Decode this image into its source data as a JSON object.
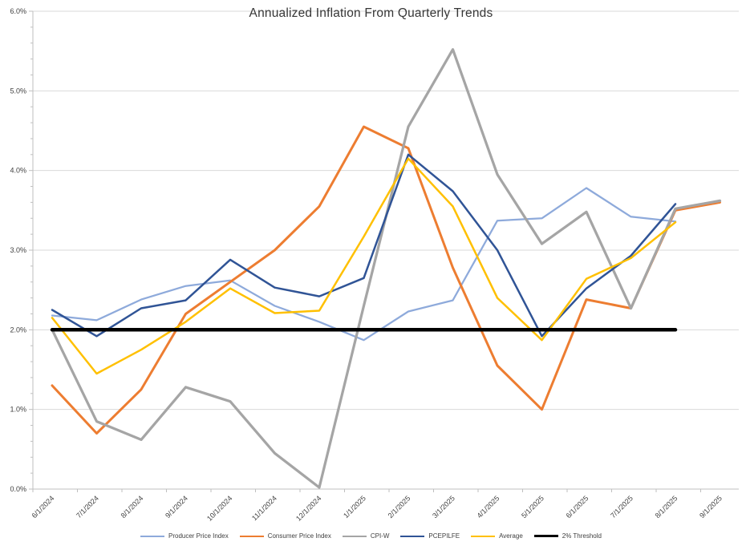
{
  "title": "Annualized Inflation From Quarterly Trends",
  "chart_data": {
    "type": "line",
    "title": "Annualized Inflation From Quarterly Trends",
    "xlabel": "",
    "ylabel": "",
    "ylim": [
      0,
      6
    ],
    "y_tick_labels": [
      "0.0%",
      "1.0%",
      "2.0%",
      "3.0%",
      "4.0%",
      "5.0%",
      "6.0%"
    ],
    "grid": "horizontal",
    "legend_position": "bottom",
    "categories": [
      "6/1/2024",
      "7/1/2024",
      "8/1/2024",
      "9/1/2024",
      "10/1/2024",
      "11/1/2024",
      "12/1/2024",
      "1/1/2025",
      "2/1/2025",
      "3/1/2025",
      "4/1/2025",
      "5/1/2025",
      "6/1/2025",
      "7/1/2025",
      "8/1/2025",
      "9/1/2025"
    ],
    "series": [
      {
        "name": "Producer Price Index",
        "color": "#8EAADB",
        "line_width": 2.25,
        "values": [
          2.18,
          2.12,
          2.38,
          2.55,
          2.62,
          2.3,
          2.1,
          1.87,
          2.23,
          2.37,
          3.37,
          3.4,
          3.78,
          3.42,
          3.36,
          null
        ]
      },
      {
        "name": "Consumer Price Index",
        "color": "#ED7D31",
        "line_width": 3,
        "values": [
          1.3,
          0.7,
          1.25,
          2.2,
          2.6,
          3.0,
          3.55,
          4.55,
          4.28,
          2.78,
          1.55,
          1.0,
          2.38,
          2.27,
          3.5,
          3.6
        ]
      },
      {
        "name": "CPI-W",
        "color": "#A5A5A5",
        "line_width": 3.25,
        "values": [
          2.0,
          0.85,
          0.62,
          1.28,
          1.1,
          0.45,
          0.02,
          2.3,
          4.55,
          5.52,
          3.95,
          3.08,
          3.48,
          2.27,
          3.52,
          3.62
        ]
      },
      {
        "name": "PCEPILFE",
        "color": "#305496",
        "line_width": 2.5,
        "values": [
          2.25,
          1.92,
          2.27,
          2.37,
          2.88,
          2.53,
          2.42,
          2.65,
          4.2,
          3.74,
          3.0,
          1.92,
          2.52,
          2.93,
          3.58,
          null
        ]
      },
      {
        "name": "Average",
        "color": "#FFC000",
        "line_width": 2.5,
        "values": [
          2.15,
          1.45,
          1.75,
          2.1,
          2.52,
          2.21,
          2.24,
          3.17,
          4.15,
          3.55,
          2.4,
          1.87,
          2.64,
          2.9,
          3.35,
          null
        ]
      },
      {
        "name": "2% Threshold",
        "color": "#000000",
        "line_width": 4.5,
        "values": [
          2.0,
          2.0,
          2.0,
          2.0,
          2.0,
          2.0,
          2.0,
          2.0,
          2.0,
          2.0,
          2.0,
          2.0,
          2.0,
          2.0,
          2.0,
          null
        ]
      }
    ]
  },
  "colors": {
    "gridline": "#D9D9D9",
    "axis_line": "#BFBFBF",
    "tick_label": "#404040",
    "title_text": "#363636"
  }
}
